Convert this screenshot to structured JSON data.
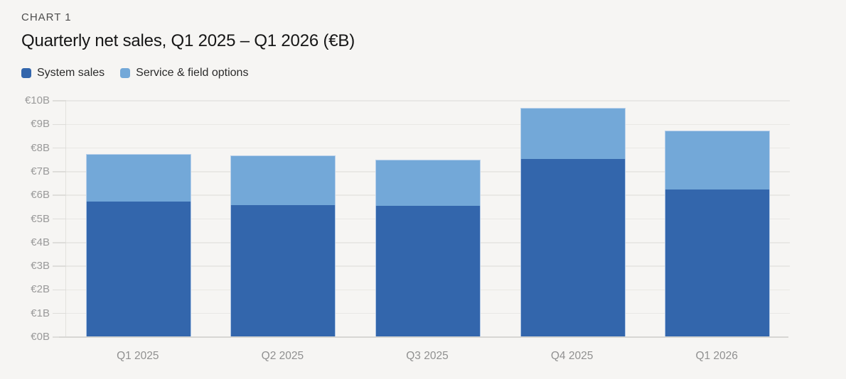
{
  "header": {
    "kicker": "CHART 1",
    "title": "Quarterly net sales, Q1 2025 – Q1 2026 (€B)"
  },
  "legend": [
    {
      "label": "System sales",
      "color": "#3366ac"
    },
    {
      "label": "Service & field options",
      "color": "#73a8d8"
    }
  ],
  "colors": {
    "background": "#f6f5f3",
    "system_sales": "#3366ac",
    "service_field_options": "#73a8d8",
    "gridline": "#e9e8e5",
    "axis_line": "#d7d6d3",
    "tick_label": "#9a9a9a"
  },
  "chart_data": {
    "type": "bar",
    "stacked": true,
    "title": "Quarterly net sales, Q1 2025 – Q1 2026 (€B)",
    "categories": [
      "Q1 2025",
      "Q2 2025",
      "Q3 2025",
      "Q4 2025",
      "Q1 2026"
    ],
    "series": [
      {
        "name": "System sales",
        "color": "#3366ac",
        "values": [
          5.75,
          5.6,
          5.55,
          7.55,
          6.25
        ]
      },
      {
        "name": "Service & field options",
        "color": "#73a8d8",
        "values": [
          2.0,
          2.1,
          1.95,
          2.15,
          2.5
        ]
      }
    ],
    "totals": [
      7.75,
      7.7,
      7.5,
      9.7,
      8.75
    ],
    "xlabel": "",
    "ylabel": "",
    "ylim": [
      0,
      10
    ],
    "y_tick_labels": [
      "€0B",
      "€1B",
      "€2B",
      "€3B",
      "€4B",
      "€5B",
      "€6B",
      "€7B",
      "€8B",
      "€9B",
      "€10B"
    ],
    "grid": true,
    "legend_position": "top-left"
  }
}
